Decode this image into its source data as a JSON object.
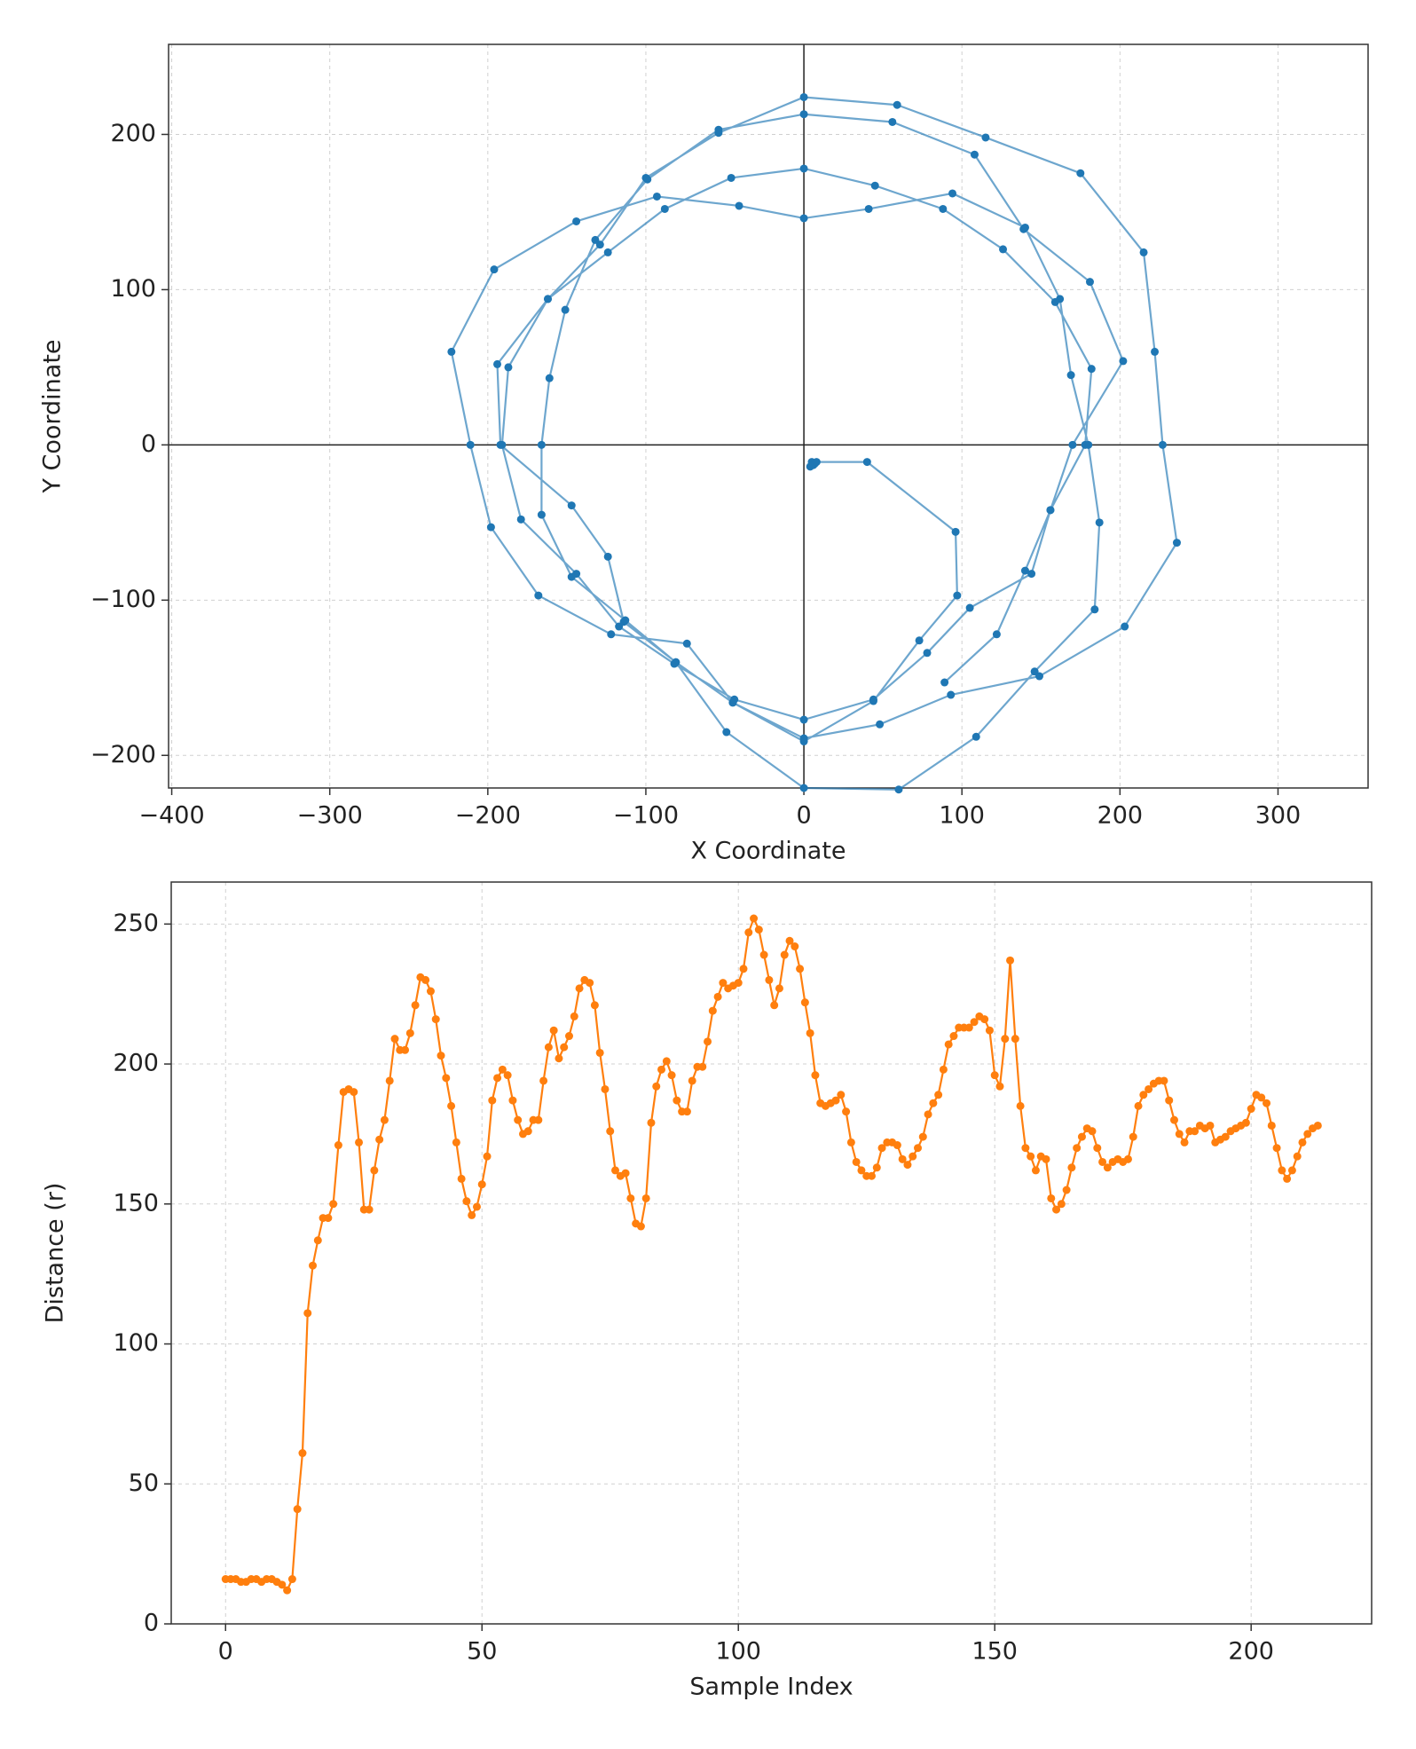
{
  "chart_data": [
    {
      "type": "line",
      "xlabel": "X Coordinate",
      "ylabel": "Y Coordinate",
      "xlim": [
        -402,
        357
      ],
      "ylim": [
        -221,
        258
      ],
      "xticks": [
        {
          "value": -400,
          "label": "−400"
        },
        {
          "value": -300,
          "label": "−300"
        },
        {
          "value": -200,
          "label": "−200"
        },
        {
          "value": -100,
          "label": "−100"
        },
        0,
        100,
        200,
        300
      ],
      "yticks": [
        {
          "value": -200,
          "label": "−200"
        },
        {
          "value": -100,
          "label": "−100"
        },
        0,
        100,
        200
      ],
      "grid": true,
      "zero_lines": true,
      "x": [
        5,
        6,
        4,
        7,
        5,
        6,
        8,
        40,
        96,
        97,
        73,
        44,
        0,
        -45,
        -74,
        -122,
        -168,
        -198,
        -211,
        -223,
        -196,
        -144,
        -93,
        -41,
        0,
        41,
        94,
        140,
        162,
        169,
        180,
        187,
        184,
        146,
        109,
        60,
        0,
        -49,
        -81,
        -114,
        -124,
        -147,
        -192,
        -194,
        -162,
        -129,
        -100,
        -54,
        0,
        59,
        115,
        175,
        215,
        222,
        227,
        236,
        203,
        149,
        93,
        48,
        0,
        -45,
        -81,
        -113,
        -147,
        -166,
        -166,
        -161,
        -151,
        -132,
        -99,
        -54,
        0,
        56,
        108,
        139,
        181,
        202,
        170,
        156,
        144,
        105,
        78,
        44,
        0,
        -44,
        -82,
        -117,
        -144,
        -179,
        -191,
        -187,
        -162,
        -124,
        -88,
        -46,
        0,
        45,
        88,
        126,
        159,
        182,
        178,
        156,
        140,
        122,
        89
      ],
      "series": [
        {
          "color": "#1f77b4",
          "values": [
            -13,
            -12,
            -14,
            -12,
            -11,
            -13,
            -11,
            -11,
            -56,
            -97,
            -126,
            -165,
            -191,
            -166,
            -128,
            -122,
            -97,
            -53,
            0,
            60,
            113,
            144,
            160,
            154,
            146,
            152,
            162,
            140,
            94,
            45,
            0,
            -50,
            -106,
            -146,
            -188,
            -222,
            -221,
            -185,
            -140,
            -114,
            -72,
            -39,
            0,
            52,
            94,
            129,
            172,
            201,
            224,
            219,
            198,
            175,
            124,
            60,
            0,
            -63,
            -117,
            -149,
            -161,
            -180,
            -189,
            -166,
            -140,
            -113,
            -85,
            -45,
            0,
            43,
            87,
            132,
            171,
            203,
            213,
            208,
            187,
            139,
            105,
            54,
            0,
            -42,
            -83,
            -105,
            -134,
            -164,
            -177,
            -164,
            -141,
            -117,
            -83,
            -48,
            0,
            50,
            94,
            124,
            152,
            172,
            178,
            167,
            152,
            126,
            92,
            49,
            0,
            -42,
            -81,
            -122,
            -153
          ]
        }
      ]
    },
    {
      "type": "line",
      "xlabel": "Sample Index",
      "ylabel": "Distance (r)",
      "xlim": [
        -10.6,
        223.5
      ],
      "ylim": [
        0,
        265
      ],
      "xticks": [
        0,
        50,
        100,
        150,
        200
      ],
      "yticks": [
        0,
        50,
        100,
        150,
        200,
        250
      ],
      "grid": true,
      "x": [
        0,
        1,
        2,
        3,
        4,
        5,
        6,
        7,
        8,
        9,
        10,
        11,
        12,
        13,
        14,
        15,
        16,
        17,
        18,
        19,
        20,
        21,
        22,
        23,
        24,
        25,
        26,
        27,
        28,
        29,
        30,
        31,
        32,
        33,
        34,
        35,
        36,
        37,
        38,
        39,
        40,
        41,
        42,
        43,
        44,
        45,
        46,
        47,
        48,
        49,
        50,
        51,
        52,
        53,
        54,
        55,
        56,
        57,
        58,
        59,
        60,
        61,
        62,
        63,
        64,
        65,
        66,
        67,
        68,
        69,
        70,
        71,
        72,
        73,
        74,
        75,
        76,
        77,
        78,
        79,
        80,
        81,
        82,
        83,
        84,
        85,
        86,
        87,
        88,
        89,
        90,
        91,
        92,
        93,
        94,
        95,
        96,
        97,
        98,
        99,
        100,
        101,
        102,
        103,
        104,
        105,
        106,
        107,
        108,
        109,
        110,
        111,
        112,
        113,
        114,
        115,
        116,
        117,
        118,
        119,
        120,
        121,
        122,
        123,
        124,
        125,
        126,
        127,
        128,
        129,
        130,
        131,
        132,
        133,
        134,
        135,
        136,
        137,
        138,
        139,
        140,
        141,
        142,
        143,
        144,
        145,
        146,
        147,
        148,
        149,
        150,
        151,
        152,
        153,
        154,
        155,
        156,
        157,
        158,
        159,
        160,
        161,
        162,
        163,
        164,
        165,
        166,
        167,
        168,
        169,
        170,
        171,
        172,
        173,
        174,
        175,
        176,
        177,
        178,
        179,
        180,
        181,
        182,
        183,
        184,
        185,
        186,
        187,
        188,
        189,
        190,
        191,
        192,
        193,
        194,
        195,
        196,
        197,
        198,
        199,
        200,
        201,
        202,
        203,
        204,
        205,
        206,
        207,
        208,
        209,
        210,
        211,
        212,
        213
      ],
      "series": [
        {
          "color": "#ff7f0e",
          "values": [
            16,
            16,
            16,
            15,
            15,
            16,
            16,
            15,
            16,
            16,
            15,
            14,
            12,
            16,
            41,
            61,
            111,
            128,
            137,
            145,
            145,
            150,
            171,
            190,
            191,
            190,
            172,
            148,
            148,
            162,
            173,
            180,
            194,
            209,
            205,
            205,
            211,
            221,
            231,
            230,
            226,
            216,
            203,
            195,
            185,
            172,
            159,
            151,
            146,
            149,
            157,
            167,
            187,
            195,
            198,
            196,
            187,
            180,
            175,
            176,
            180,
            180,
            194,
            206,
            212,
            202,
            206,
            210,
            217,
            227,
            230,
            229,
            221,
            204,
            191,
            176,
            162,
            160,
            161,
            152,
            143,
            142,
            152,
            179,
            192,
            198,
            201,
            196,
            187,
            183,
            183,
            194,
            199,
            199,
            208,
            219,
            224,
            229,
            227,
            228,
            229,
            234,
            247,
            252,
            248,
            239,
            230,
            221,
            227,
            239,
            244,
            242,
            234,
            222,
            211,
            196,
            186,
            185,
            186,
            187,
            189,
            183,
            172,
            165,
            162,
            160,
            160,
            163,
            170,
            172,
            172,
            171,
            166,
            164,
            167,
            170,
            174,
            182,
            186,
            189,
            198,
            207,
            210,
            213,
            213,
            213,
            215,
            217,
            216,
            212,
            196,
            192,
            209,
            237,
            209,
            185,
            170,
            167,
            162,
            167,
            166,
            152,
            148,
            150,
            155,
            163,
            170,
            174,
            177,
            176,
            170,
            165,
            163,
            165,
            166,
            165,
            166,
            174,
            185,
            189,
            191,
            193,
            194,
            194,
            187,
            180,
            175,
            172,
            176,
            176,
            178,
            177,
            178,
            172,
            173,
            174,
            176,
            177,
            178,
            179,
            184,
            189,
            188,
            186,
            178,
            170,
            162,
            159,
            162,
            167,
            172,
            175,
            177,
            178
          ]
        }
      ]
    }
  ]
}
